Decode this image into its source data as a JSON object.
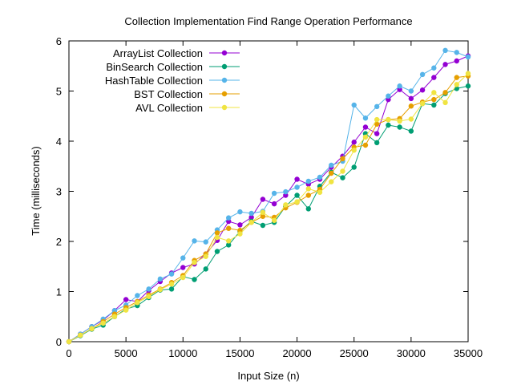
{
  "chart_data": {
    "type": "line",
    "title": "Collection Implementation Find Range Operation Performance",
    "xlabel": "Input Size (n)",
    "ylabel": "Time (milliseconds)",
    "xlim": [
      0,
      35000
    ],
    "ylim": [
      0,
      6
    ],
    "xticks": [
      0,
      5000,
      10000,
      15000,
      20000,
      25000,
      30000,
      35000
    ],
    "yticks": [
      0,
      1,
      2,
      3,
      4,
      5,
      6
    ],
    "grid": false,
    "legend_position": "top-left",
    "x": [
      0,
      1000,
      2000,
      3000,
      4000,
      5000,
      6000,
      7000,
      8000,
      9000,
      10000,
      11000,
      12000,
      13000,
      14000,
      15000,
      16000,
      17000,
      18000,
      19000,
      20000,
      21000,
      22000,
      23000,
      24000,
      25000,
      26000,
      27000,
      28000,
      29000,
      30000,
      31000,
      32000,
      33000,
      34000,
      35000
    ],
    "series": [
      {
        "name": "ArrayList Collection",
        "color": "#9400d3",
        "values": [
          0.0,
          0.15,
          0.3,
          0.43,
          0.62,
          0.84,
          0.8,
          1.02,
          1.2,
          1.37,
          1.48,
          1.55,
          1.75,
          2.02,
          2.4,
          2.33,
          2.48,
          2.84,
          2.75,
          2.92,
          3.24,
          3.14,
          3.24,
          3.48,
          3.7,
          3.98,
          4.28,
          4.15,
          4.83,
          5.03,
          4.85,
          5.02,
          5.27,
          5.53,
          5.6,
          5.7
        ]
      },
      {
        "name": "BinSearch Collection",
        "color": "#009e73",
        "values": [
          0.0,
          0.12,
          0.25,
          0.33,
          0.5,
          0.65,
          0.72,
          0.88,
          1.03,
          1.05,
          1.3,
          1.24,
          1.45,
          1.8,
          1.93,
          2.2,
          2.4,
          2.32,
          2.38,
          2.7,
          2.92,
          2.65,
          3.1,
          3.38,
          3.27,
          3.48,
          4.15,
          3.97,
          4.32,
          4.28,
          4.2,
          4.75,
          4.72,
          4.95,
          5.05,
          5.1
        ]
      },
      {
        "name": "HashTable Collection",
        "color": "#56b4e9",
        "values": [
          0.0,
          0.15,
          0.3,
          0.45,
          0.62,
          0.73,
          0.92,
          1.05,
          1.25,
          1.35,
          1.67,
          2.01,
          1.99,
          2.23,
          2.47,
          2.59,
          2.56,
          2.6,
          2.96,
          2.99,
          3.08,
          3.2,
          3.28,
          3.52,
          3.6,
          4.72,
          4.46,
          4.69,
          4.9,
          5.1,
          5.0,
          5.33,
          5.46,
          5.81,
          5.77,
          5.68
        ]
      },
      {
        "name": "BST Collection",
        "color": "#e69f00",
        "values": [
          0.0,
          0.13,
          0.26,
          0.4,
          0.55,
          0.68,
          0.8,
          0.93,
          1.05,
          1.18,
          1.32,
          1.62,
          1.75,
          2.17,
          2.26,
          2.22,
          2.38,
          2.5,
          2.48,
          2.67,
          2.78,
          2.92,
          3.04,
          3.36,
          3.65,
          3.88,
          3.92,
          4.34,
          4.43,
          4.45,
          4.7,
          4.78,
          4.83,
          4.97,
          5.27,
          5.3
        ]
      },
      {
        "name": "AVL Collection",
        "color": "#f0e442",
        "values": [
          0.0,
          0.13,
          0.26,
          0.37,
          0.5,
          0.63,
          0.78,
          0.9,
          1.04,
          1.15,
          1.28,
          1.58,
          1.7,
          2.08,
          2.01,
          2.15,
          2.38,
          2.58,
          2.42,
          2.73,
          2.79,
          3.05,
          2.98,
          3.19,
          3.4,
          3.82,
          4.08,
          4.43,
          4.43,
          4.4,
          4.44,
          4.75,
          4.97,
          4.77,
          5.13,
          5.35
        ]
      }
    ]
  }
}
